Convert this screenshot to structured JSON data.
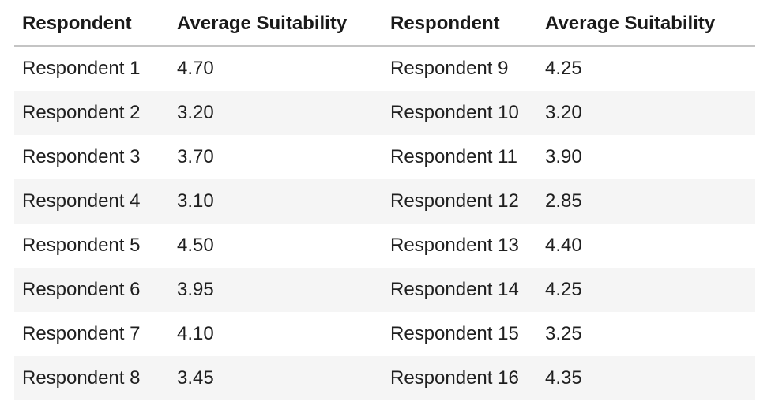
{
  "table": {
    "headers": [
      "Respondent",
      "Average Suitability",
      "Respondent",
      "Average Suitability"
    ],
    "rows": [
      [
        "Respondent 1",
        "4.70",
        "Respondent 9",
        "4.25"
      ],
      [
        "Respondent 2",
        "3.20",
        "Respondent 10",
        "3.20"
      ],
      [
        "Respondent 3",
        "3.70",
        "Respondent 11",
        "3.90"
      ],
      [
        "Respondent 4",
        "3.10",
        "Respondent 12",
        "2.85"
      ],
      [
        "Respondent 5",
        "4.50",
        "Respondent 13",
        "4.40"
      ],
      [
        "Respondent 6",
        "3.95",
        "Respondent 14",
        "4.25"
      ],
      [
        "Respondent 7",
        "4.10",
        "Respondent 15",
        "3.25"
      ],
      [
        "Respondent 8",
        "3.45",
        "Respondent 16",
        "4.35"
      ]
    ]
  }
}
